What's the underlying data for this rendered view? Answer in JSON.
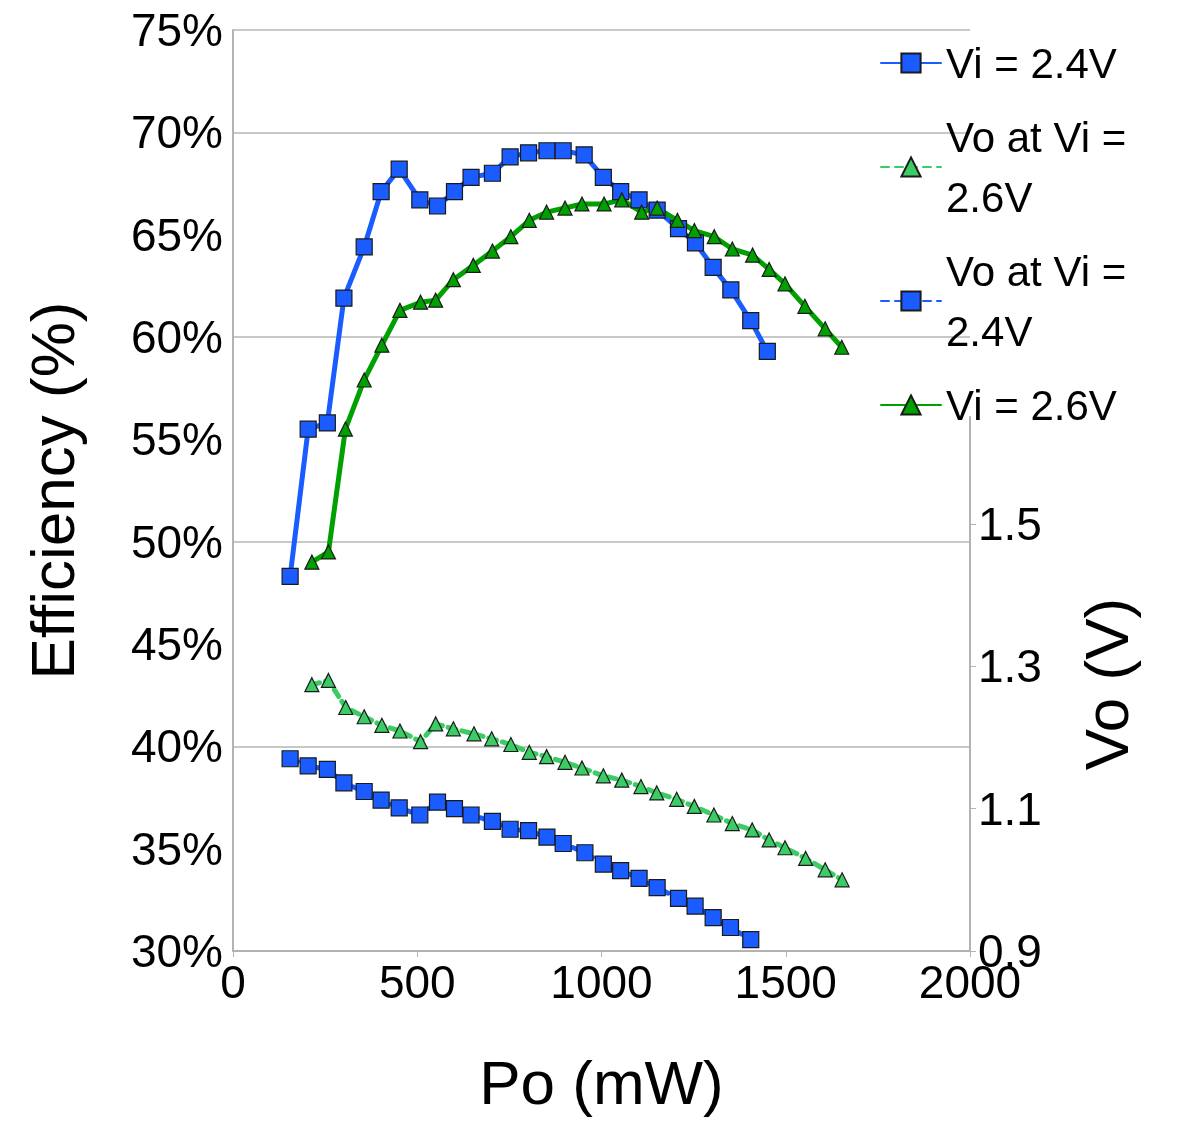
{
  "chart_data": {
    "type": "line",
    "xlabel": "Po (mW)",
    "ylabel": "Efficiency (%)",
    "y2label": "Vo (V)",
    "xlim": [
      0,
      2000
    ],
    "xticks": [
      0,
      500,
      1000,
      1500,
      2000
    ],
    "ylim": [
      30,
      75
    ],
    "yticks": [
      {
        "value": 30,
        "label": "30%"
      },
      {
        "value": 35,
        "label": "35%"
      },
      {
        "value": 40,
        "label": "40%"
      },
      {
        "value": 45,
        "label": "45%"
      },
      {
        "value": 50,
        "label": "50%"
      },
      {
        "value": 55,
        "label": "55%"
      },
      {
        "value": 60,
        "label": "60%"
      },
      {
        "value": 65,
        "label": "65%"
      },
      {
        "value": 70,
        "label": "70%"
      },
      {
        "value": 75,
        "label": "75%"
      }
    ],
    "y2lim": [
      0.9,
      1.65
    ],
    "y2ticks": [
      0.9,
      1.1,
      1.3,
      1.5
    ],
    "grid": "y",
    "legend": "top right",
    "series": [
      {
        "name": "Vi = 2.4V",
        "color": "#1a5cff",
        "marker": "square",
        "line_style": "solid",
        "x": [
          155,
          204,
          256,
          301,
          356,
          402,
          451,
          507,
          555,
          601,
          646,
          704,
          752,
          802,
          852,
          896,
          953,
          1005,
          1052,
          1102,
          1151,
          1209,
          1255,
          1303,
          1351,
          1405,
          1450
        ],
        "values": [
          48.3,
          55.5,
          55.8,
          61.9,
          64.4,
          67.1,
          68.2,
          66.7,
          66.4,
          67.1,
          67.8,
          68.0,
          68.8,
          69.0,
          69.1,
          69.1,
          68.9,
          67.8,
          67.1,
          66.7,
          66.2,
          65.3,
          64.6,
          63.4,
          62.3,
          60.8,
          59.3
        ]
      },
      {
        "name": "Vo at Vi = 2.6V",
        "color": "#3ccc66",
        "marker": "triangle",
        "line_style": "dashed",
        "axis": "y2",
        "x": [
          214,
          259,
          306,
          356,
          404,
          453,
          509,
          550,
          598,
          654,
          702,
          754,
          804,
          851,
          901,
          947,
          1005,
          1055,
          1107,
          1150,
          1204,
          1252,
          1305,
          1355,
          1409,
          1455,
          1498,
          1554,
          1607,
          1653
        ],
        "values": [
          1.274,
          1.28,
          1.242,
          1.229,
          1.217,
          1.209,
          1.194,
          1.219,
          1.212,
          1.205,
          1.198,
          1.19,
          1.179,
          1.173,
          1.165,
          1.157,
          1.146,
          1.14,
          1.131,
          1.122,
          1.113,
          1.103,
          1.091,
          1.079,
          1.07,
          1.056,
          1.045,
          1.03,
          1.014,
          1.0
        ]
      },
      {
        "name": "Vo at Vi = 2.4V",
        "color": "#1a5cff",
        "marker": "square",
        "line_style": "dashed",
        "axis": "y2",
        "x": [
          155,
          204,
          256,
          301,
          356,
          402,
          451,
          507,
          555,
          601,
          646,
          704,
          752,
          802,
          852,
          896,
          955,
          1005,
          1052,
          1102,
          1151,
          1209,
          1254,
          1303,
          1350,
          1405
        ],
        "values": [
          1.17,
          1.16,
          1.155,
          1.136,
          1.124,
          1.112,
          1.101,
          1.091,
          1.109,
          1.1,
          1.091,
          1.082,
          1.071,
          1.069,
          1.06,
          1.051,
          1.038,
          1.022,
          1.013,
          1.002,
          0.989,
          0.974,
          0.963,
          0.947,
          0.933,
          0.916
        ]
      },
      {
        "name": "Vi = 2.6V",
        "color": "#00a000",
        "marker": "triangle",
        "line_style": "solid",
        "x": [
          214,
          259,
          305,
          356,
          404,
          453,
          509,
          550,
          598,
          652,
          704,
          754,
          804,
          851,
          901,
          947,
          1007,
          1055,
          1109,
          1151,
          1206,
          1252,
          1306,
          1355,
          1410,
          1455,
          1498,
          1552,
          1607,
          1652
        ],
        "values": [
          49.0,
          49.5,
          55.5,
          57.9,
          59.6,
          61.3,
          61.7,
          61.8,
          62.8,
          63.5,
          64.2,
          64.9,
          65.7,
          66.1,
          66.3,
          66.5,
          66.5,
          66.7,
          66.1,
          66.3,
          65.7,
          65.2,
          64.9,
          64.3,
          64.0,
          63.3,
          62.6,
          61.5,
          60.4,
          59.5
        ]
      }
    ]
  }
}
